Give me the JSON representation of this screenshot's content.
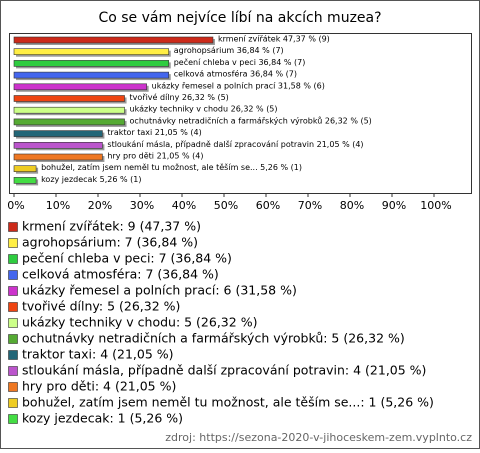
{
  "chart_data": {
    "type": "bar",
    "orientation": "horizontal",
    "title": "Co se vám nejvíce líbí na akcích muzea?",
    "values": [
      47.37,
      36.84,
      36.84,
      36.84,
      31.58,
      26.32,
      26.32,
      26.32,
      21.05,
      21.05,
      21.05,
      5.26,
      5.26
    ],
    "value_labels": [
      "krmení zvířátek 47,37 % (9)",
      "agrohopsárium 36,84 % (7)",
      "pečení chleba v peci 36,84 % (7)",
      "celková atmosféra 36,84 % (7)",
      "ukázky řemesel a polních prací 31,58 % (6)",
      "tvořivé dílny 26,32 % (5)",
      "ukázky techniky v chodu 26,32 % (5)",
      "ochutnávky netradičních a farmářských výrobků 26,32 % (5)",
      "traktor taxi 21,05 % (4)",
      "stloukání másla, případně další zpracování potravin 21,05 % (4)",
      "hry pro děti 21,05 % (4)",
      "bohužel, zatím jsem neměl tu možnost, ale těším se... 5,26 % (1)",
      "kozy jezdecak 5,26 % (1)"
    ],
    "legend": [
      "krmení zvířátek: 9 (47,37 %)",
      "agrohopsárium: 7 (36,84 %)",
      "pečení chleba v peci: 7 (36,84 %)",
      "celková atmosféra: 7 (36,84 %)",
      "ukázky řemesel a polních prací: 6 (31,58 %)",
      "tvořivé dílny: 5 (26,32 %)",
      "ukázky techniky v chodu: 5 (26,32 %)",
      "ochutnávky netradičních a farmářských výrobků: 5 (26,32 %)",
      "traktor taxi: 4 (21,05 %)",
      "stloukání másla, případně další zpracování potravin: 4 (21,05 %)",
      "hry pro děti: 4 (21,05 %)",
      "bohužel, zatím jsem neměl tu možnost, ale těším se...: 1 (5,26 %)",
      "kozy jezdecak: 1 (5,26 %)"
    ],
    "colors": [
      "#cc2a1a",
      "#ffee44",
      "#2ecc40",
      "#4466ee",
      "#cc33cc",
      "#ee4411",
      "#ccff88",
      "#55aa33",
      "#226677",
      "#bb55cc",
      "#ee7722",
      "#eecc22",
      "#44dd44"
    ],
    "xlim": [
      0,
      100
    ],
    "xticks": [
      {
        "value": 0,
        "label": "0%"
      },
      {
        "value": 10,
        "label": "10%"
      },
      {
        "value": 20,
        "label": "20%"
      },
      {
        "value": 30,
        "label": "30%"
      },
      {
        "value": 40,
        "label": "40%"
      },
      {
        "value": 50,
        "label": "50%"
      },
      {
        "value": 60,
        "label": "60%"
      },
      {
        "value": 70,
        "label": "70%"
      },
      {
        "value": 80,
        "label": "80%"
      },
      {
        "value": 90,
        "label": "90%"
      },
      {
        "value": 100,
        "label": "100%"
      }
    ],
    "source": "zdroj: https://sezona-2020-v-jihoceskem-zem.vyplnto.cz"
  }
}
